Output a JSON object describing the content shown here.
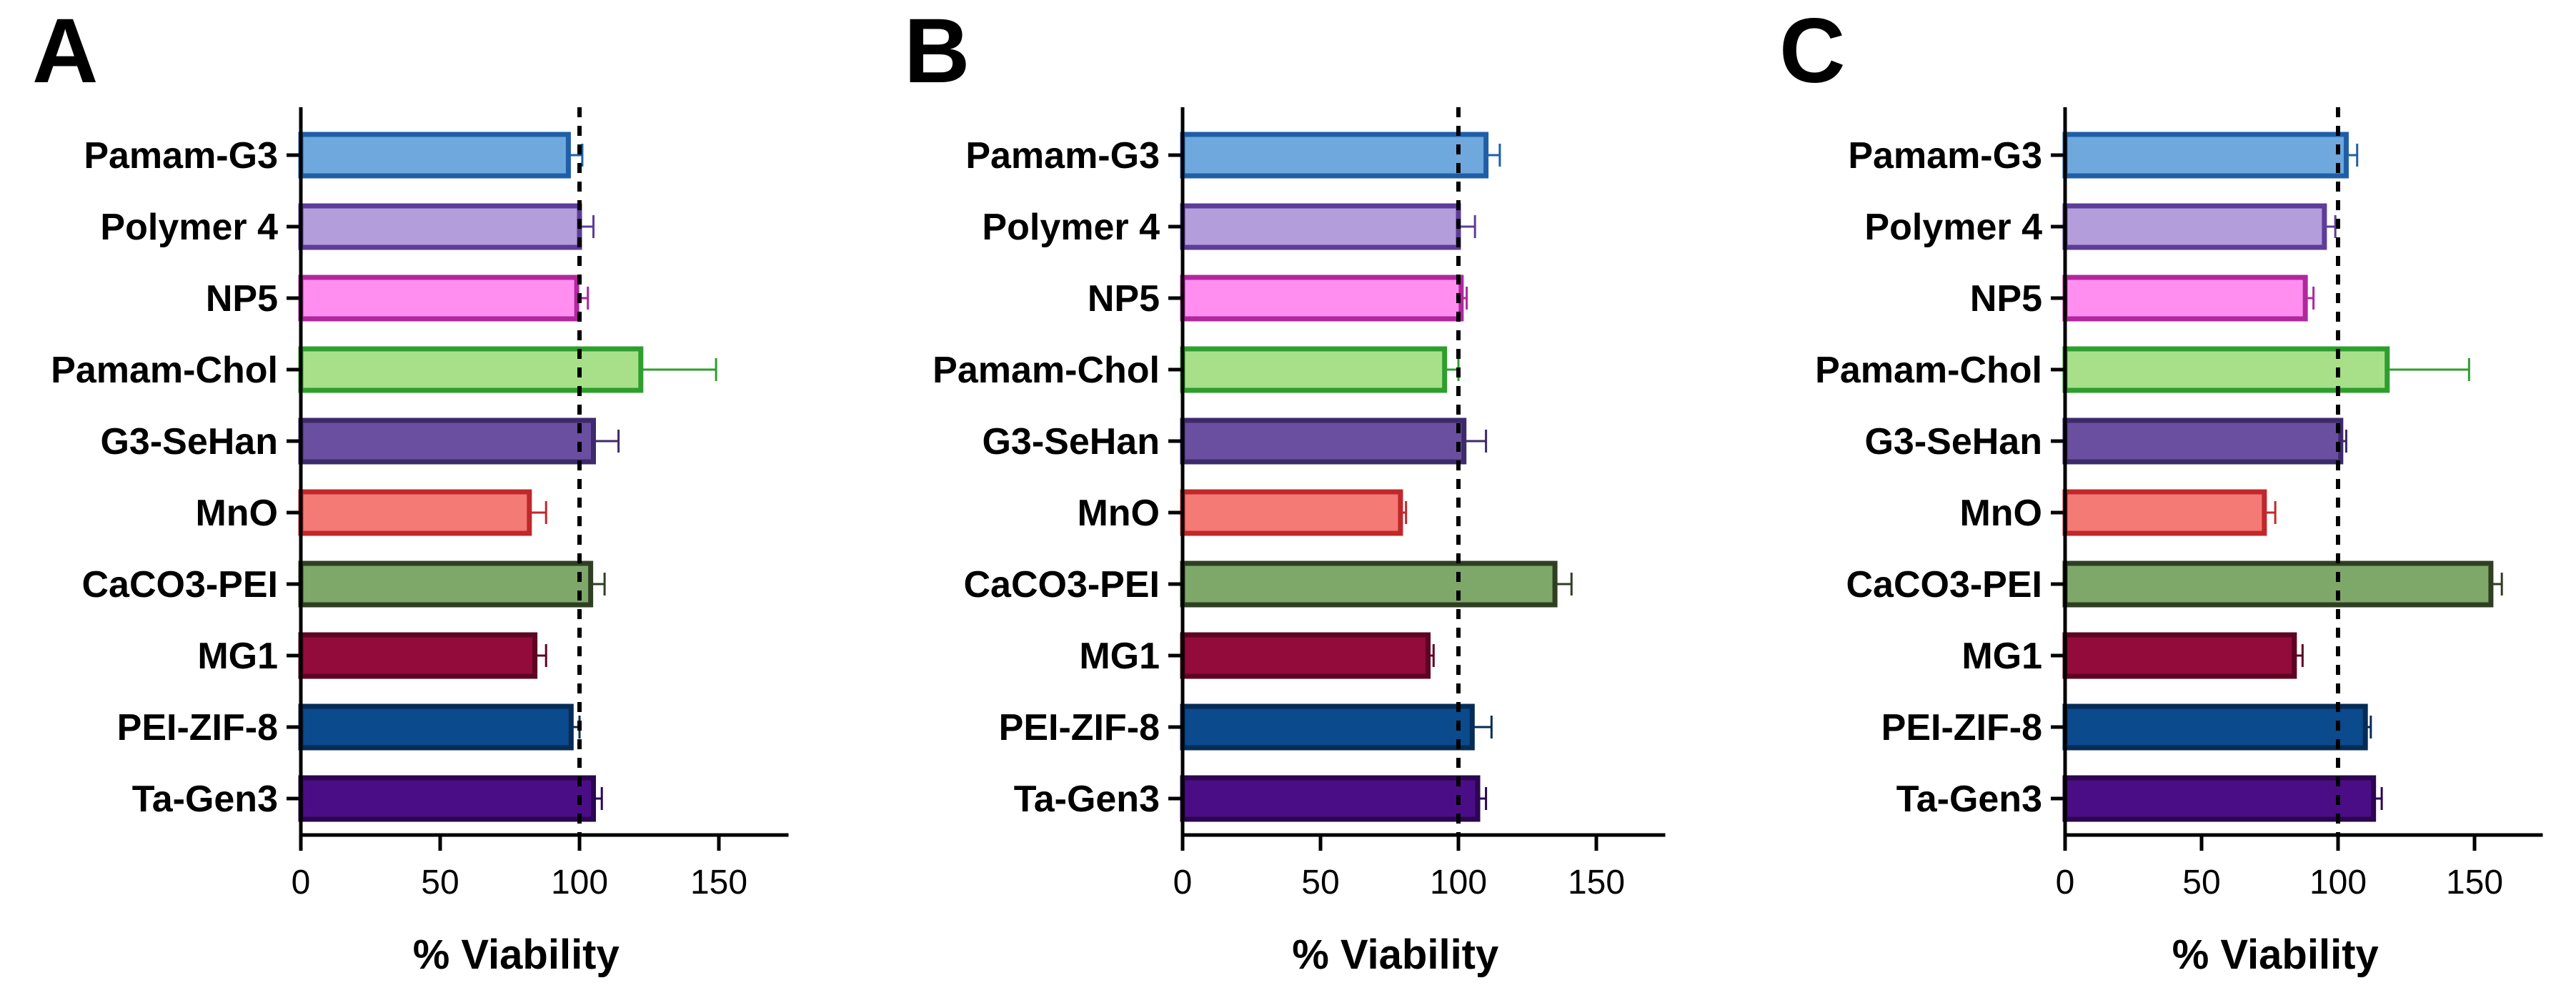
{
  "chart_data": [
    {
      "panel": "A",
      "type": "bar",
      "orientation": "horizontal",
      "categories": [
        "Pamam-G3",
        "Polymer 4",
        "NP5",
        "Pamam-Chol",
        "G3-SeHan",
        "MnO",
        "CaCO3-PEI",
        "MG1",
        "PEI-ZIF-8",
        "Ta-Gen3"
      ],
      "values": [
        96,
        100,
        99,
        122,
        105,
        82,
        104,
        84,
        97,
        105
      ],
      "errors": [
        5,
        5,
        4,
        27,
        9,
        6,
        5,
        4,
        3,
        3
      ],
      "xlabel": "% Viability",
      "xlim": [
        0,
        175
      ],
      "xticks": [
        0,
        50,
        100,
        150
      ],
      "reference_line": 100
    },
    {
      "panel": "B",
      "type": "bar",
      "orientation": "horizontal",
      "categories": [
        "Pamam-G3",
        "Polymer 4",
        "NP5",
        "Pamam-Chol",
        "G3-SeHan",
        "MnO",
        "CaCO3-PEI",
        "MG1",
        "PEI-ZIF-8",
        "Ta-Gen3"
      ],
      "values": [
        110,
        100,
        101,
        95,
        102,
        79,
        135,
        89,
        105,
        107
      ],
      "errors": [
        5,
        6,
        2,
        5,
        8,
        2,
        6,
        2,
        7,
        3
      ],
      "xlabel": "% Viability",
      "xlim": [
        0,
        175
      ],
      "xticks": [
        0,
        50,
        100,
        150
      ],
      "reference_line": 100
    },
    {
      "panel": "C",
      "type": "bar",
      "orientation": "horizontal",
      "categories": [
        "Pamam-G3",
        "Polymer 4",
        "NP5",
        "Pamam-Chol",
        "G3-SeHan",
        "MnO",
        "CaCO3-PEI",
        "MG1",
        "PEI-ZIF-8",
        "Ta-Gen3"
      ],
      "values": [
        103,
        95,
        88,
        118,
        101,
        73,
        156,
        84,
        110,
        113
      ],
      "errors": [
        4,
        4,
        3,
        30,
        2,
        4,
        4,
        3,
        2,
        3
      ],
      "xlabel": "% Viability",
      "xlim": [
        0,
        175
      ],
      "xticks": [
        0,
        50,
        100,
        150
      ],
      "reference_line": 100
    }
  ],
  "series_colors": [
    {
      "fill": "#6fa8dc",
      "stroke": "#1f5fa8"
    },
    {
      "fill": "#b39ddb",
      "stroke": "#5e3c99"
    },
    {
      "fill": "#ff8ef0",
      "stroke": "#b0279e"
    },
    {
      "fill": "#a8e08a",
      "stroke": "#2e9e2e"
    },
    {
      "fill": "#6a4fa0",
      "stroke": "#3d2a6a"
    },
    {
      "fill": "#f47a76",
      "stroke": "#c0282a"
    },
    {
      "fill": "#7ea86a",
      "stroke": "#2f3f22"
    },
    {
      "fill": "#930b3a",
      "stroke": "#5c0422"
    },
    {
      "fill": "#0b4a8c",
      "stroke": "#062c56"
    },
    {
      "fill": "#4b0d85",
      "stroke": "#2c0650"
    }
  ]
}
